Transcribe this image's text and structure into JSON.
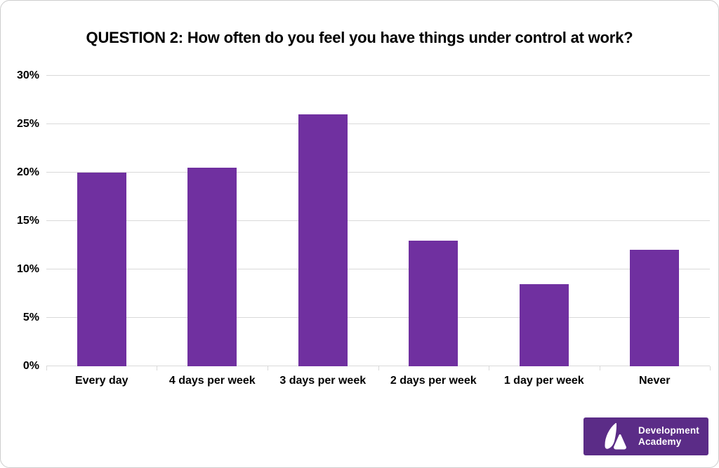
{
  "chart_data": {
    "type": "bar",
    "title": "QUESTION 2: How often do you feel you have things under control at work?",
    "categories": [
      "Every day",
      "4 days per week",
      "3 days per week",
      "2 days per week",
      "1 day per week",
      "Never"
    ],
    "values": [
      20,
      20.5,
      26,
      13,
      8.5,
      12
    ],
    "unit": "%",
    "xlabel": "",
    "ylabel": "",
    "ylim": [
      0,
      30
    ],
    "yticks": [
      0,
      5,
      10,
      15,
      20,
      25,
      30
    ],
    "ytick_labels": [
      "0%",
      "5%",
      "10%",
      "15%",
      "20%",
      "25%",
      "30%"
    ],
    "grid": true,
    "legend": false,
    "bar_color": "#7030A0",
    "gridline_color": "#D9D9D9"
  },
  "logo": {
    "line1": "Development",
    "line2": "Academy",
    "background_color": "#5B2C87",
    "emblem": "sail-and-peak-icon"
  }
}
